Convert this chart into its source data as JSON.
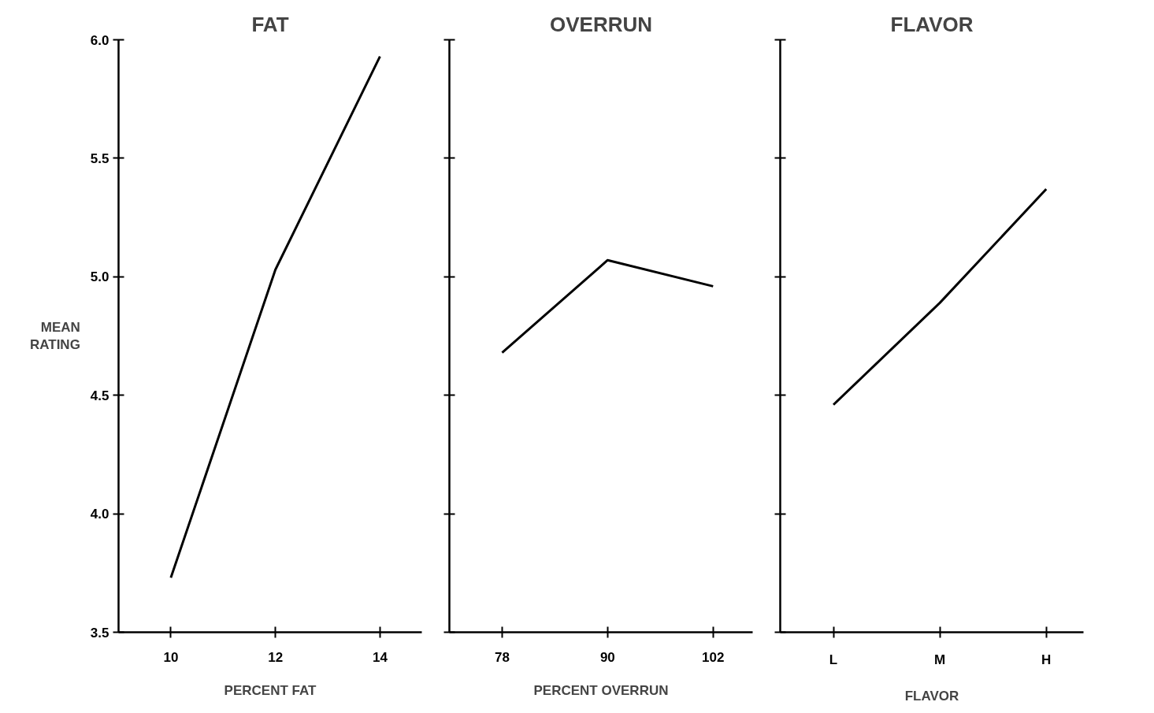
{
  "chart_data": [
    {
      "type": "line",
      "title": "FAT",
      "xlabel": "PERCENT FAT",
      "ylabel": "MEAN\nRATING",
      "x": [
        10,
        12,
        14
      ],
      "xlim": [
        9,
        14.8
      ],
      "xticks": [
        10,
        12,
        14
      ],
      "series": [
        {
          "color": "#000000",
          "values": [
            3.73,
            5.03,
            5.93
          ]
        }
      ],
      "ylim": [
        3.5,
        6.0
      ],
      "yticks": [
        {
          "value": 3.5,
          "label": "3.5"
        },
        {
          "value": 4.0,
          "label": "4.0"
        },
        {
          "value": 4.5,
          "label": "4.5"
        },
        {
          "value": 5.0,
          "label": "5.0"
        },
        {
          "value": 5.5,
          "label": "5.5"
        },
        {
          "value": 6.0,
          "label": "6.0"
        }
      ],
      "grid": false,
      "marker": "none",
      "line_style": "solid"
    },
    {
      "type": "line",
      "title": "OVERRUN",
      "xlabel": "PERCENT OVERRUN",
      "x": [
        78,
        90,
        102
      ],
      "xlim": [
        72,
        106.5
      ],
      "xticks": [
        78,
        90,
        102
      ],
      "series": [
        {
          "color": "#000000",
          "values": [
            4.68,
            5.07,
            4.96
          ]
        }
      ],
      "ylim": [
        3.5,
        6.0
      ],
      "yticks": [
        {
          "value": 3.5,
          "label": null
        },
        {
          "value": 4.0,
          "label": null
        },
        {
          "value": 4.5,
          "label": null
        },
        {
          "value": 5.0,
          "label": null
        },
        {
          "value": 5.5,
          "label": null
        },
        {
          "value": 6.0,
          "label": null
        }
      ],
      "tick_labels": "x",
      "grid": false,
      "marker": "none",
      "line_style": "solid"
    },
    {
      "type": "line",
      "title": "FLAVOR",
      "xlabel": "FLAVOR",
      "categories": [
        "L",
        "M",
        "H"
      ],
      "series": [
        {
          "color": "#000000",
          "values": [
            4.46,
            4.89,
            5.37
          ]
        }
      ],
      "ylim": [
        3.5,
        6.0
      ],
      "yticks": [
        {
          "value": 3.5,
          "label": null
        },
        {
          "value": 4.0,
          "label": null
        },
        {
          "value": 4.5,
          "label": null
        },
        {
          "value": 5.0,
          "label": null
        },
        {
          "value": 5.5,
          "label": null
        },
        {
          "value": 6.0,
          "label": null
        }
      ],
      "tick_labels": "x",
      "grid": false,
      "marker": "none",
      "line_style": "solid"
    }
  ]
}
